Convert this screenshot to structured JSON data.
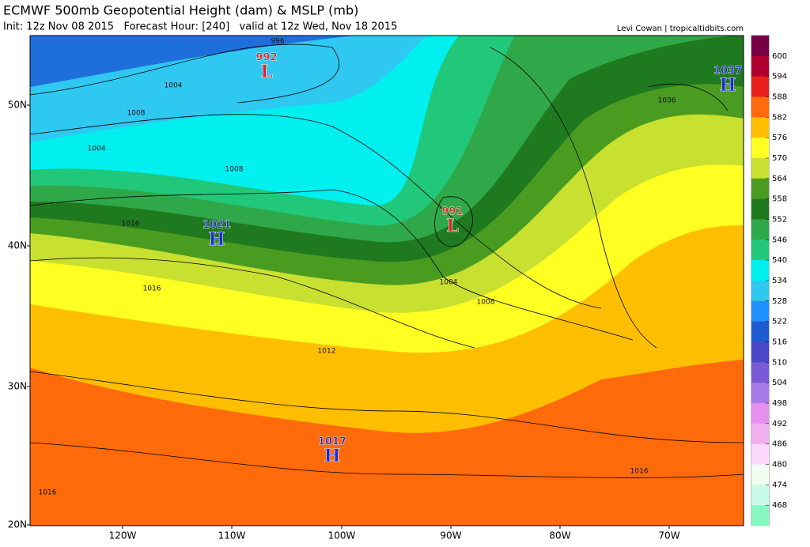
{
  "header": {
    "title": "ECMWF 500mb Geopotential Height (dam) & MSLP (mb)",
    "subtitle": "Init: 12z Nov 08 2015   Forecast Hour: [240]   valid at 12z Wed, Nov 18 2015",
    "credit": "Levi Cowan | tropicaltidbits.com"
  },
  "map": {
    "lat_labels": [
      "50N",
      "40N",
      "30N",
      "20N"
    ],
    "lon_labels": [
      "120W",
      "110W",
      "100W",
      "90W",
      "80W",
      "70W"
    ],
    "pressure_centers": [
      {
        "value": "992",
        "letter": "L"
      },
      {
        "value": "991",
        "letter": "L"
      },
      {
        "value": "1021",
        "letter": "H"
      },
      {
        "value": "1017",
        "letter": "H"
      },
      {
        "value": "1037",
        "letter": "H"
      }
    ],
    "isobar_labels": [
      "996",
      "1004",
      "1008",
      "1004",
      "1008",
      "1016",
      "1016",
      "1012",
      "1004",
      "1008",
      "1036",
      "1016",
      "1016"
    ]
  },
  "colorbar": {
    "labels": [
      600,
      594,
      588,
      582,
      576,
      570,
      564,
      558,
      552,
      546,
      540,
      534,
      528,
      522,
      516,
      510,
      504,
      498,
      492,
      486,
      480,
      474,
      468
    ],
    "colors": [
      "#7a0046",
      "#b00030",
      "#e8201c",
      "#ff6a0a",
      "#ffbf00",
      "#ffff22",
      "#c8e030",
      "#4a9c20",
      "#1f7a1f",
      "#2fa84a",
      "#22c87a",
      "#00f0f0",
      "#2ec8f0",
      "#1e90ff",
      "#1e5ad0",
      "#4a48c8",
      "#7a5ad8",
      "#a87ae8",
      "#e890f0",
      "#f0b0f0",
      "#fcd8fc",
      "#f0fff0",
      "#c8fce8",
      "#88f8c0"
    ]
  }
}
